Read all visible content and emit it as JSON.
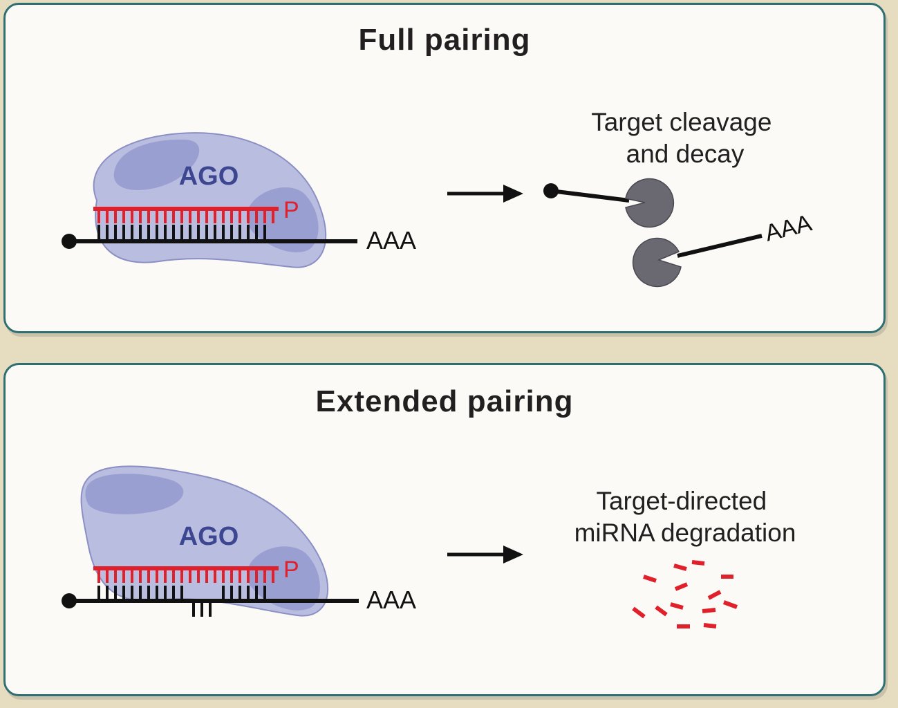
{
  "panels": [
    {
      "title": "Full pairing",
      "protein_label": "AGO",
      "phosphate_label": "P",
      "polyA_label": "AAA",
      "outcome": [
        "Target cleavage",
        "and decay"
      ],
      "fragment_polyA_label": "AAA"
    },
    {
      "title": "Extended pairing",
      "protein_label": "AGO",
      "phosphate_label": "P",
      "polyA_label": "AAA",
      "outcome": [
        "Target-directed",
        "miRNA degradation"
      ]
    }
  ],
  "colors": {
    "panel_border": "#2f6f71",
    "panel_fill": "#fbfaf6",
    "background": "#e6dcc0",
    "ago_fill": "#b9bde0",
    "ago_dark": "#9a9fd2",
    "ago_text": "#3d4690",
    "mirna_red": "#e0202a",
    "strand_black": "#111111",
    "exonuclease_gray": "#6a6870"
  },
  "icons": [
    "arrow-right-icon",
    "exonuclease-pacman-icon",
    "cap-dot-icon",
    "mirna-fragment-icon"
  ]
}
